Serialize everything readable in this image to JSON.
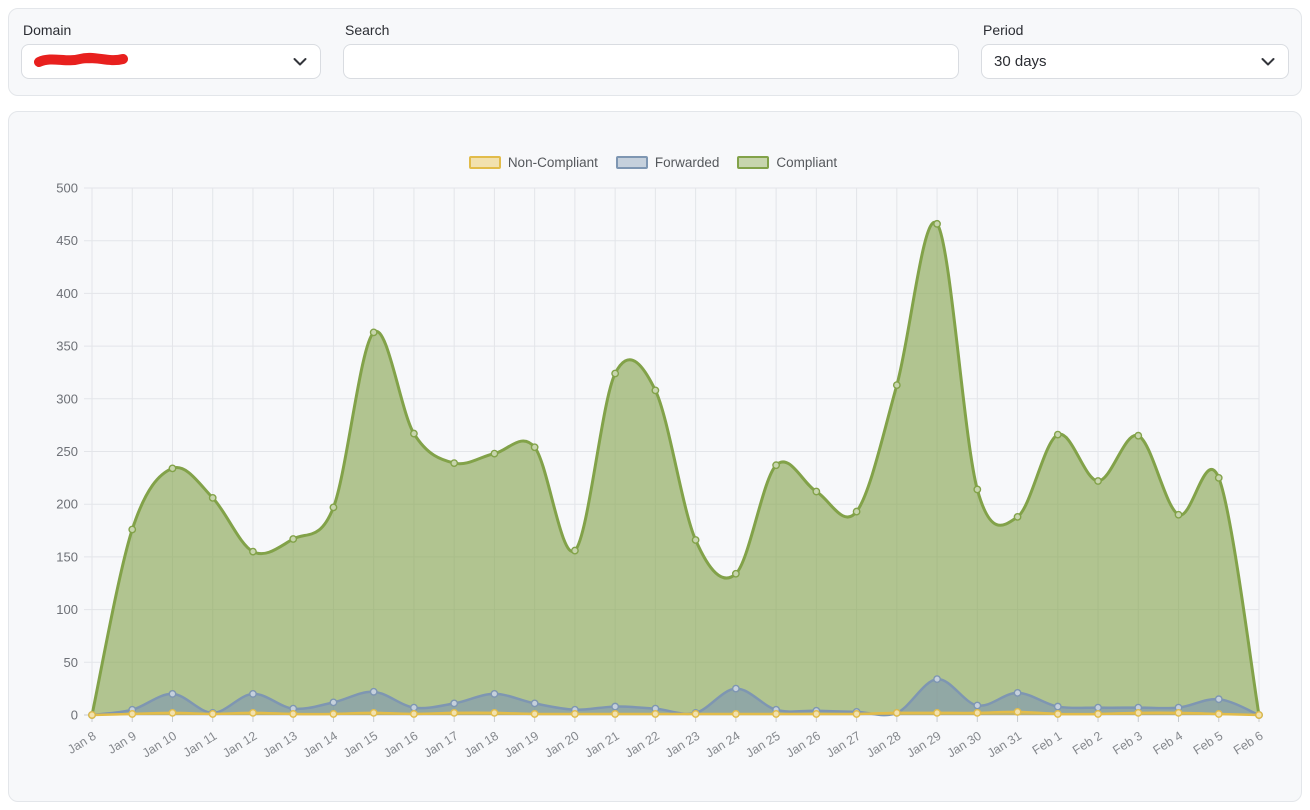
{
  "filters": {
    "domain": {
      "label": "Domain",
      "value": "",
      "value_note": "redacted-with-red-marker"
    },
    "search": {
      "label": "Search",
      "value": "",
      "placeholder": ""
    },
    "period": {
      "label": "Period",
      "value": "30 days"
    }
  },
  "chart_data": {
    "type": "area",
    "title": "",
    "xlabel": "",
    "ylabel": "",
    "ylim": [
      0,
      500
    ],
    "yticks": [
      0,
      50,
      100,
      150,
      200,
      250,
      300,
      350,
      400,
      450,
      500
    ],
    "grid": true,
    "legend_position": "top",
    "x": [
      "Jan 8",
      "Jan 9",
      "Jan 10",
      "Jan 11",
      "Jan 12",
      "Jan 13",
      "Jan 14",
      "Jan 15",
      "Jan 16",
      "Jan 17",
      "Jan 18",
      "Jan 19",
      "Jan 20",
      "Jan 21",
      "Jan 22",
      "Jan 23",
      "Jan 24",
      "Jan 25",
      "Jan 26",
      "Jan 27",
      "Jan 28",
      "Jan 29",
      "Jan 30",
      "Jan 31",
      "Feb 1",
      "Feb 2",
      "Feb 3",
      "Feb 4",
      "Feb 5",
      "Feb 6"
    ],
    "series": [
      {
        "name": "Non-Compliant",
        "color": "#e2bc4a",
        "values": [
          0,
          1,
          2,
          1,
          2,
          1,
          1,
          2,
          1,
          2,
          2,
          1,
          1,
          1,
          1,
          1,
          1,
          1,
          1,
          1,
          2,
          2,
          2,
          3,
          1,
          1,
          2,
          2,
          1,
          0
        ]
      },
      {
        "name": "Forwarded",
        "color": "#7e96b2",
        "values": [
          0,
          5,
          20,
          2,
          20,
          6,
          12,
          22,
          7,
          11,
          20,
          11,
          5,
          8,
          6,
          2,
          25,
          5,
          4,
          3,
          2,
          34,
          9,
          21,
          8,
          7,
          7,
          7,
          15,
          0
        ]
      },
      {
        "name": "Compliant",
        "color": "#82a249",
        "values": [
          0,
          176,
          234,
          206,
          155,
          167,
          197,
          363,
          267,
          239,
          248,
          254,
          156,
          324,
          308,
          166,
          134,
          237,
          212,
          193,
          313,
          466,
          214,
          188,
          266,
          222,
          265,
          190,
          225,
          0
        ]
      }
    ]
  },
  "chart_style": {
    "plot_bg": "#f7f8fa",
    "grid_color": "#e3e5e9",
    "axis_color": "#c8cbd0",
    "x_label_color": "#85888d",
    "y_label_color": "#6d7076",
    "scribble_color": "#e8201e"
  }
}
